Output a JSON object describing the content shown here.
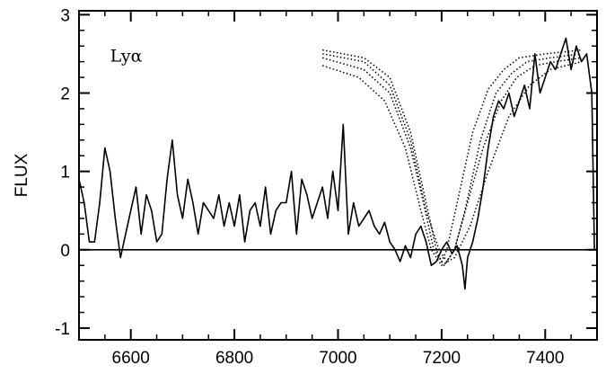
{
  "chart_data": {
    "type": "line",
    "title": "",
    "xlabel": "",
    "ylabel": "FLUX",
    "xlim": [
      6500,
      7500
    ],
    "ylim": [
      -1.15,
      3.05
    ],
    "x_ticks": [
      6600,
      6800,
      7000,
      7200,
      7400
    ],
    "y_ticks": [
      -1,
      0,
      1,
      2,
      3
    ],
    "x_tick_labels": [
      "6600",
      "6800",
      "7000",
      "7200",
      "7400"
    ],
    "y_tick_labels": [
      "-1",
      "0",
      "1",
      "2",
      "3"
    ],
    "grid": false,
    "legend": "none",
    "annotations": [
      {
        "text": "Lyα",
        "x": 6560,
        "y": 2.4
      }
    ],
    "zero_line": 0,
    "series": [
      {
        "style": "solid",
        "x": [
          6500,
          6510,
          6520,
          6530,
          6540,
          6550,
          6560,
          6570,
          6580,
          6590,
          6600,
          6610,
          6620,
          6630,
          6640,
          6650,
          6660,
          6670,
          6680,
          6690,
          6700,
          6710,
          6720,
          6730,
          6740,
          6750,
          6760,
          6770,
          6780,
          6790,
          6800,
          6810,
          6820,
          6830,
          6840,
          6850,
          6860,
          6870,
          6880,
          6890,
          6900,
          6910,
          6920,
          6930,
          6940,
          6950,
          6960,
          6970,
          6980,
          6990,
          7000,
          7010,
          7020,
          7030,
          7040,
          7050,
          7060,
          7070,
          7080,
          7090,
          7100,
          7110,
          7120,
          7130,
          7140,
          7150,
          7160,
          7170,
          7180,
          7190,
          7200,
          7210,
          7220,
          7230,
          7240,
          7245,
          7250,
          7260,
          7270,
          7280,
          7290,
          7300,
          7310,
          7320,
          7330,
          7340,
          7350,
          7360,
          7370,
          7380,
          7390,
          7400,
          7410,
          7420,
          7430,
          7440,
          7450,
          7460,
          7470,
          7480,
          7490,
          7495
        ],
        "y": [
          0.9,
          0.6,
          0.1,
          0.1,
          0.6,
          1.3,
          1.0,
          0.4,
          -0.1,
          0.2,
          0.5,
          0.8,
          0.2,
          0.7,
          0.5,
          0.1,
          0.2,
          0.9,
          1.4,
          0.7,
          0.4,
          0.9,
          0.6,
          0.2,
          0.6,
          0.5,
          0.4,
          0.7,
          0.3,
          0.6,
          0.3,
          0.7,
          0.1,
          0.5,
          0.6,
          0.3,
          0.8,
          0.2,
          0.5,
          0.6,
          0.6,
          1.0,
          0.2,
          0.9,
          0.7,
          0.4,
          0.6,
          0.8,
          0.4,
          1.0,
          0.5,
          1.6,
          0.2,
          0.6,
          0.3,
          0.4,
          0.5,
          0.3,
          0.2,
          0.35,
          0.1,
          0.0,
          -0.15,
          0.05,
          -0.1,
          0.2,
          0.3,
          0.1,
          -0.2,
          -0.15,
          0.0,
          0.1,
          -0.05,
          0.05,
          -0.2,
          -0.5,
          -0.1,
          0.1,
          0.4,
          0.8,
          1.3,
          1.7,
          1.9,
          1.8,
          2.0,
          1.7,
          1.9,
          2.1,
          1.8,
          2.5,
          2.0,
          2.2,
          2.4,
          2.3,
          2.5,
          2.7,
          2.3,
          2.6,
          2.4,
          2.5,
          2.0,
          0.0
        ]
      },
      {
        "style": "dotted",
        "x": [
          6970,
          7050,
          7100,
          7140,
          7170,
          7190,
          7200,
          7210,
          7230,
          7260,
          7290,
          7320,
          7350,
          7400,
          7470
        ],
        "y": [
          2.55,
          2.45,
          2.2,
          1.5,
          0.6,
          0.0,
          -0.15,
          0.0,
          0.6,
          1.5,
          2.05,
          2.3,
          2.45,
          2.5,
          2.55
        ]
      },
      {
        "style": "dotted",
        "x": [
          6970,
          7050,
          7100,
          7140,
          7170,
          7195,
          7210,
          7225,
          7245,
          7275,
          7305,
          7335,
          7365,
          7410,
          7470
        ],
        "y": [
          2.5,
          2.4,
          2.1,
          1.4,
          0.5,
          0.0,
          -0.15,
          0.0,
          0.5,
          1.4,
          2.0,
          2.25,
          2.4,
          2.45,
          2.5
        ]
      },
      {
        "style": "dotted",
        "x": [
          6970,
          7050,
          7100,
          7140,
          7165,
          7185,
          7205,
          7225,
          7250,
          7280,
          7315,
          7345,
          7380,
          7420,
          7470
        ],
        "y": [
          2.45,
          2.3,
          2.0,
          1.3,
          0.6,
          0.0,
          -0.2,
          0.0,
          0.6,
          1.3,
          1.9,
          2.2,
          2.35,
          2.4,
          2.45
        ]
      },
      {
        "style": "dotted",
        "x": [
          6970,
          7040,
          7090,
          7130,
          7160,
          7180,
          7200,
          7225,
          7255,
          7290,
          7330,
          7370,
          7410,
          7440,
          7470
        ],
        "y": [
          2.35,
          2.2,
          1.9,
          1.3,
          0.5,
          0.0,
          -0.2,
          -0.1,
          0.3,
          1.0,
          1.7,
          2.1,
          2.3,
          2.35,
          2.4
        ]
      }
    ]
  }
}
